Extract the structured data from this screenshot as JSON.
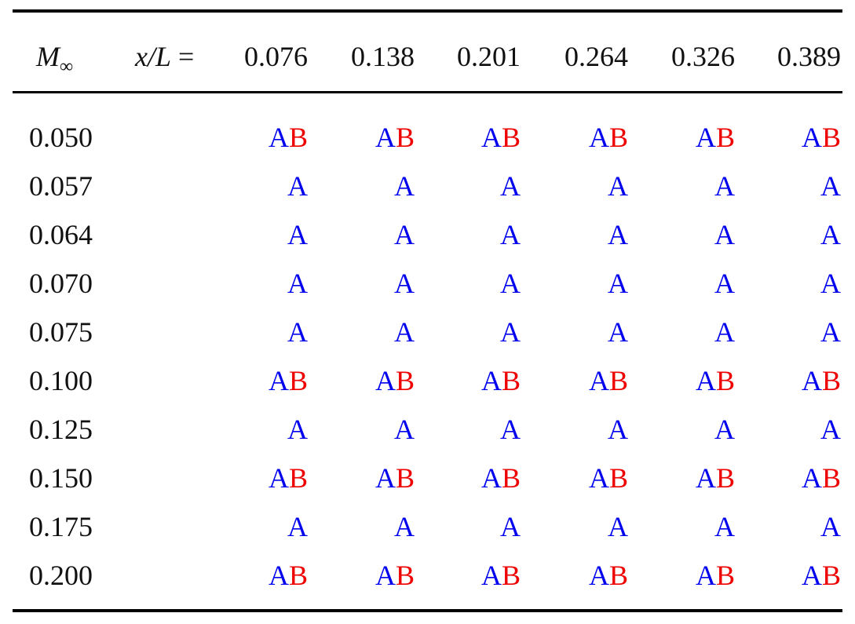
{
  "table": {
    "row_header": {
      "symbol": "M",
      "subscript": "∞"
    },
    "column_header": {
      "variable": "x/L",
      "relation": "="
    },
    "columns": [
      "0.076",
      "0.138",
      "0.201",
      "0.264",
      "0.326",
      "0.389"
    ],
    "colors": {
      "A": "#0000ee",
      "B": "#ee0000"
    },
    "rows": [
      {
        "label": "0.050",
        "cells": [
          [
            "A",
            "B"
          ],
          [
            "A",
            "B"
          ],
          [
            "A",
            "B"
          ],
          [
            "A",
            "B"
          ],
          [
            "A",
            "B"
          ],
          [
            "A",
            "B"
          ]
        ]
      },
      {
        "label": "0.057",
        "cells": [
          [
            "A"
          ],
          [
            "A"
          ],
          [
            "A"
          ],
          [
            "A"
          ],
          [
            "A"
          ],
          [
            "A"
          ]
        ]
      },
      {
        "label": "0.064",
        "cells": [
          [
            "A"
          ],
          [
            "A"
          ],
          [
            "A"
          ],
          [
            "A"
          ],
          [
            "A"
          ],
          [
            "A"
          ]
        ]
      },
      {
        "label": "0.070",
        "cells": [
          [
            "A"
          ],
          [
            "A"
          ],
          [
            "A"
          ],
          [
            "A"
          ],
          [
            "A"
          ],
          [
            "A"
          ]
        ]
      },
      {
        "label": "0.075",
        "cells": [
          [
            "A"
          ],
          [
            "A"
          ],
          [
            "A"
          ],
          [
            "A"
          ],
          [
            "A"
          ],
          [
            "A"
          ]
        ]
      },
      {
        "label": "0.100",
        "cells": [
          [
            "A",
            "B"
          ],
          [
            "A",
            "B"
          ],
          [
            "A",
            "B"
          ],
          [
            "A",
            "B"
          ],
          [
            "A",
            "B"
          ],
          [
            "A",
            "B"
          ]
        ]
      },
      {
        "label": "0.125",
        "cells": [
          [
            "A"
          ],
          [
            "A"
          ],
          [
            "A"
          ],
          [
            "A"
          ],
          [
            "A"
          ],
          [
            "A"
          ]
        ]
      },
      {
        "label": "0.150",
        "cells": [
          [
            "A",
            "B"
          ],
          [
            "A",
            "B"
          ],
          [
            "A",
            "B"
          ],
          [
            "A",
            "B"
          ],
          [
            "A",
            "B"
          ],
          [
            "A",
            "B"
          ]
        ]
      },
      {
        "label": "0.175",
        "cells": [
          [
            "A"
          ],
          [
            "A"
          ],
          [
            "A"
          ],
          [
            "A"
          ],
          [
            "A"
          ],
          [
            "A"
          ]
        ]
      },
      {
        "label": "0.200",
        "cells": [
          [
            "A",
            "B"
          ],
          [
            "A",
            "B"
          ],
          [
            "A",
            "B"
          ],
          [
            "A",
            "B"
          ],
          [
            "A",
            "B"
          ],
          [
            "A",
            "B"
          ]
        ]
      }
    ]
  }
}
